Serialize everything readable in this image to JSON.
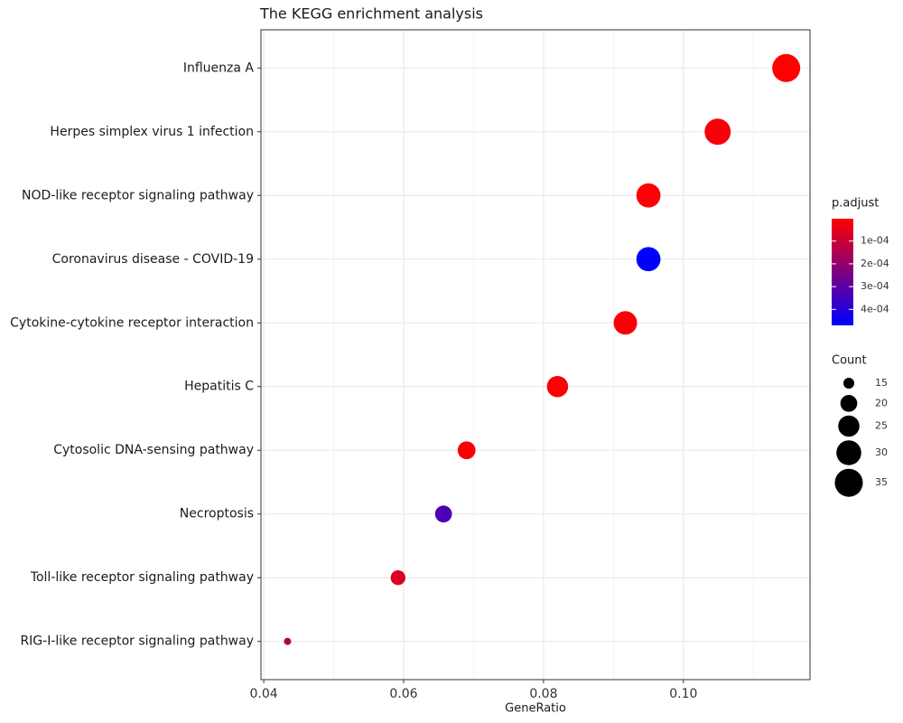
{
  "chart_data": {
    "type": "dot",
    "title": "The KEGG enrichment analysis",
    "x_label": "GeneRatio",
    "categories": [
      "Influenza A",
      "Herpes simplex virus 1 infection",
      "NOD-like receptor signaling pathway",
      "Coronavirus disease - COVID-19",
      "Cytokine-cytokine receptor interaction",
      "Hepatitis C",
      "Cytosolic DNA-sensing pathway",
      "Necroptosis",
      "Toll-like receptor signaling pathway",
      "RIG-I-like receptor signaling pathway"
    ],
    "values": [
      0.1147,
      0.1049,
      0.095,
      0.095,
      0.0917,
      0.082,
      0.069,
      0.0657,
      0.0592,
      0.0434
    ],
    "counts": [
      35,
      32,
      29,
      29,
      28,
      25,
      21,
      20,
      18,
      13
    ],
    "p_adjust": [
      2e-06,
      1.5e-05,
      1e-05,
      0.00047,
      1.2e-05,
      8e-06,
      1.1e-05,
      0.00033,
      6.5e-05,
      0.00015
    ],
    "xlim": [
      0.0396,
      0.1181
    ],
    "xticks": [
      0.04,
      0.06,
      0.08,
      {
        "value": 0.1,
        "label": "0.10"
      }
    ],
    "x_minor_ticks": [
      0.05,
      0.07,
      0.09,
      0.11
    ],
    "grid": true,
    "color_title": "p.adjust",
    "color_low": "#ff0000",
    "color_high": "#0000ff",
    "color_ticks": [
      {
        "value": 0.0001,
        "label": "1e-04"
      },
      {
        "value": 0.0002,
        "label": "2e-04"
      },
      {
        "value": 0.0003,
        "label": "3e-04"
      },
      {
        "value": 0.0004,
        "label": "4e-04"
      }
    ],
    "size_title": "Count",
    "size_breaks": [
      15,
      20,
      25,
      30,
      35
    ]
  }
}
